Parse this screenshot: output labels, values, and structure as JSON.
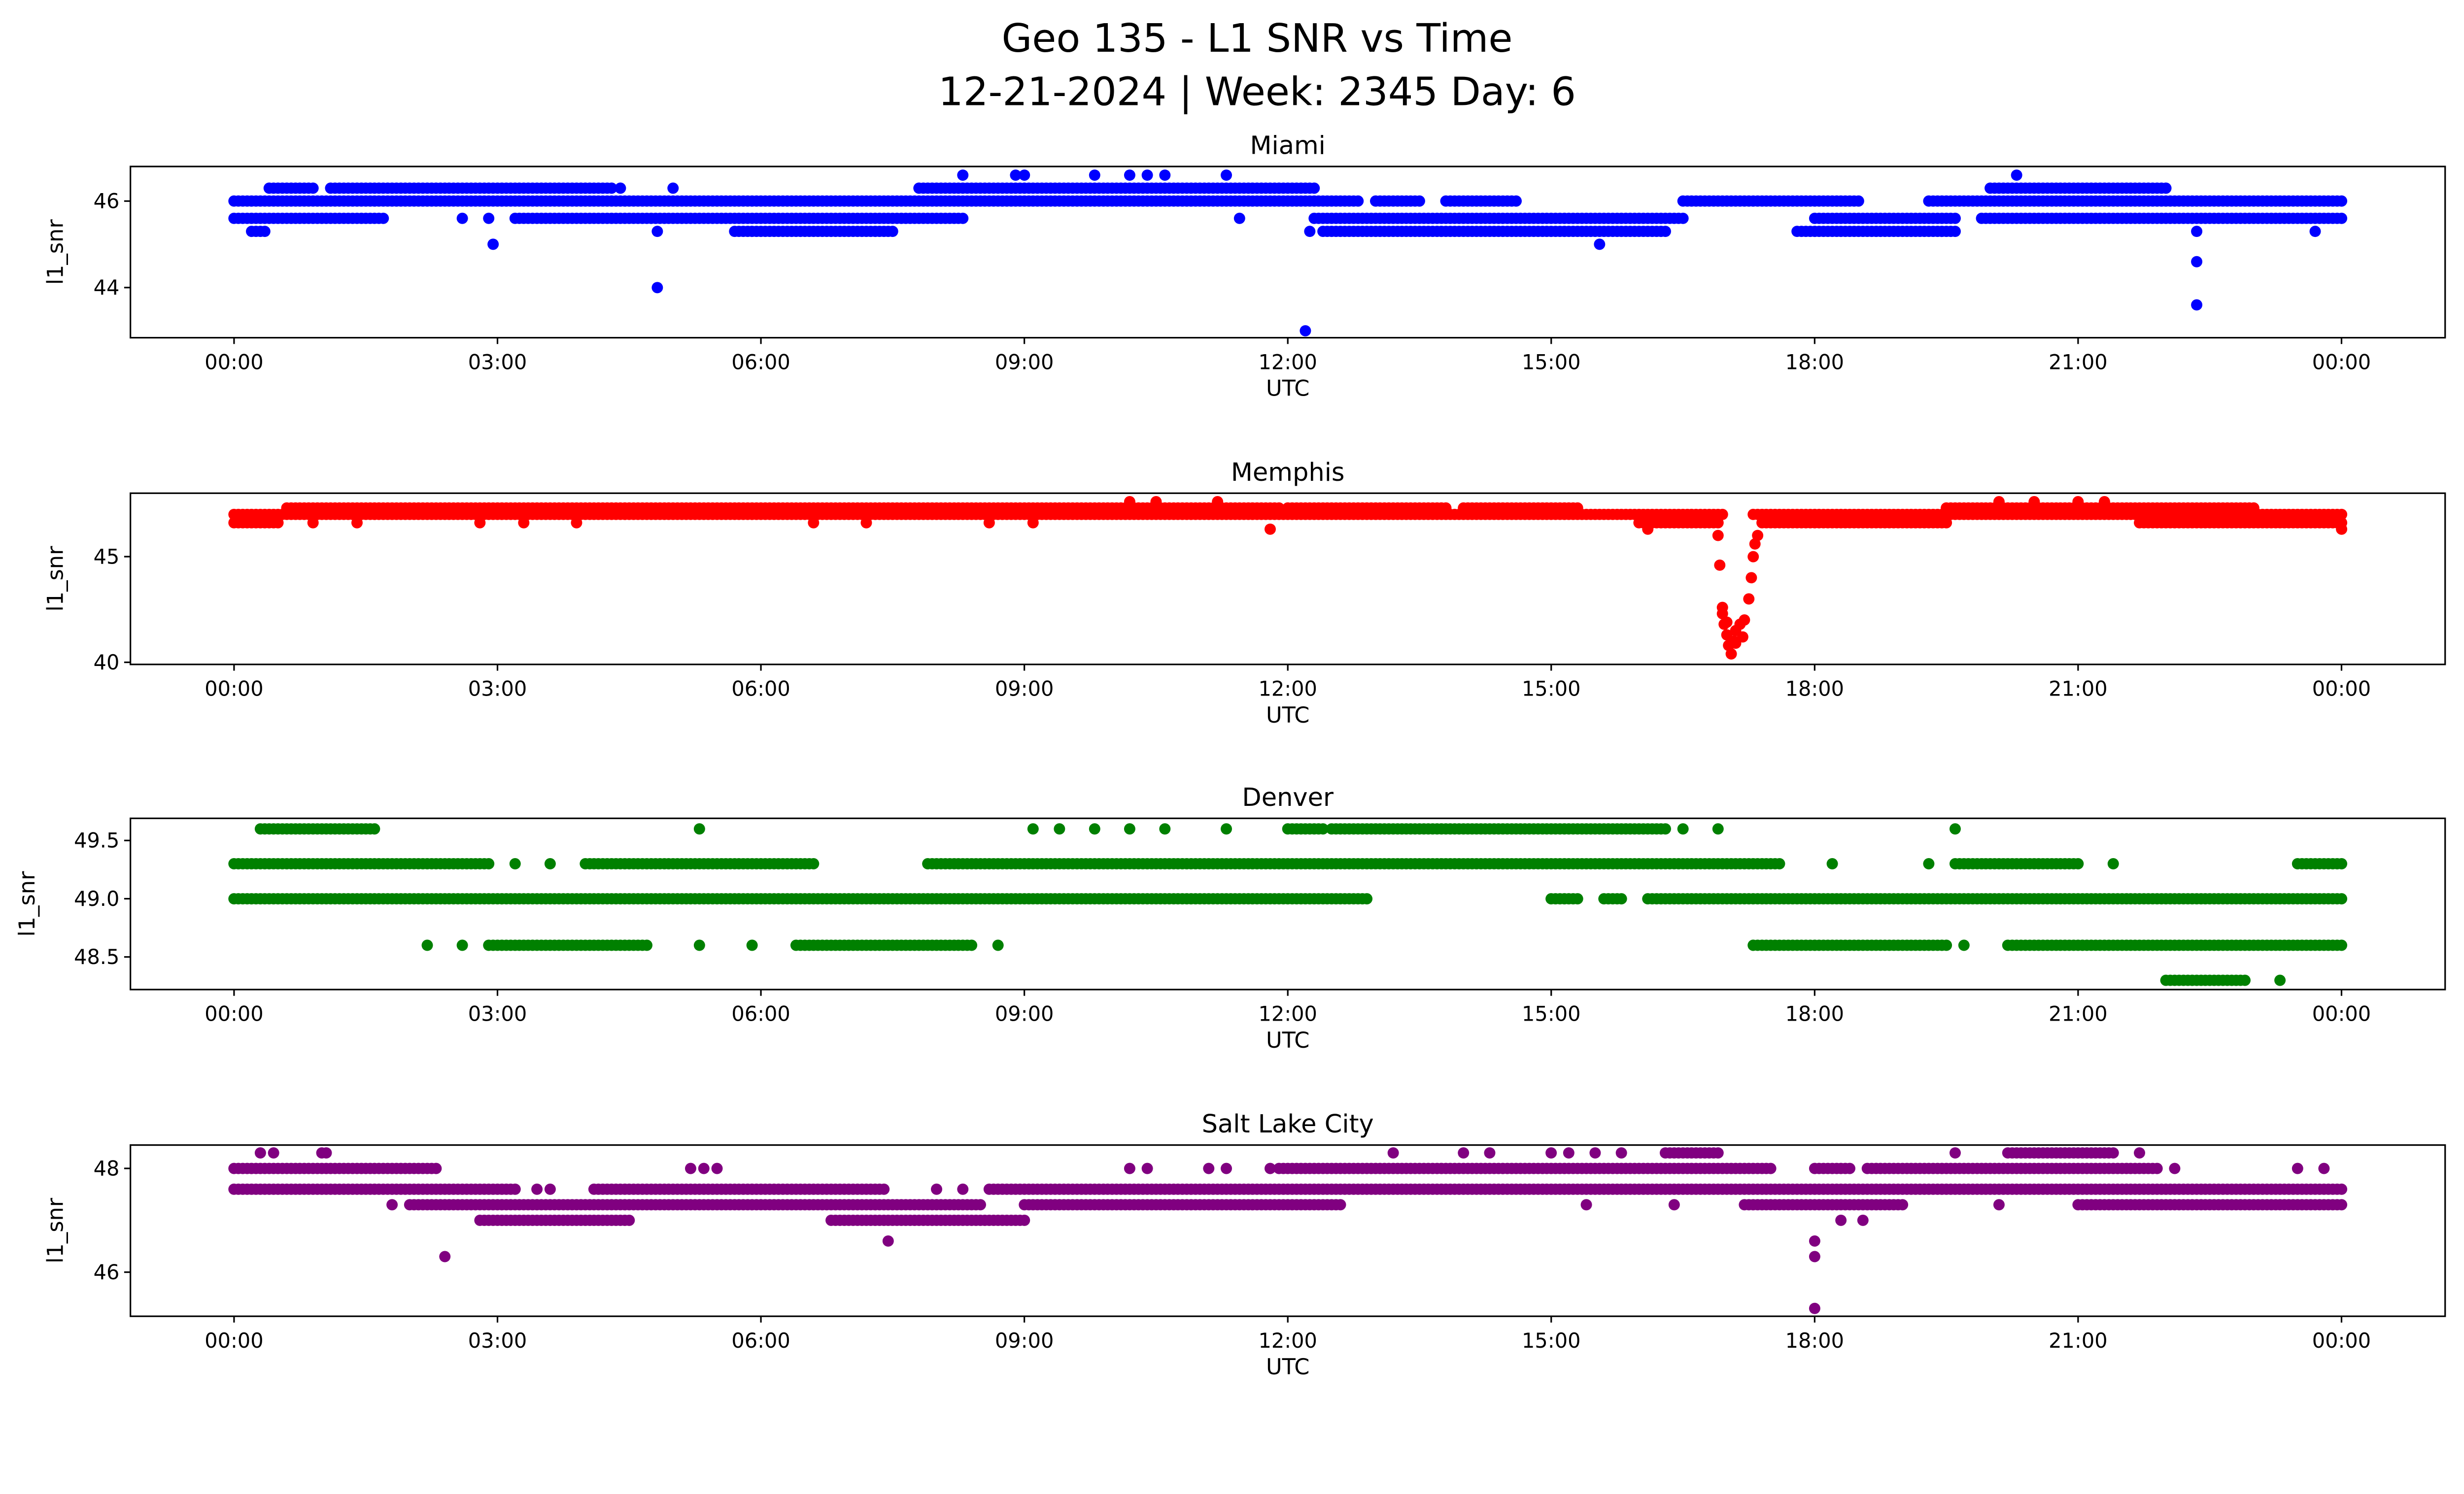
{
  "title": {
    "line1": "Geo 135 - L1 SNR vs Time",
    "line2": "12-21-2024 | Week: 2345 Day: 6"
  },
  "chart_data": [
    {
      "type": "scatter",
      "title": "Miami",
      "xlabel": "UTC",
      "ylabel": "l1_snr",
      "color": "#0000ff",
      "xlim": [
        -1.18,
        25.18
      ],
      "ylim": [
        42.84,
        46.8
      ],
      "yticks": [
        44,
        46
      ],
      "xticks": [
        {
          "h": 0,
          "label": "00:00"
        },
        {
          "h": 3,
          "label": "03:00"
        },
        {
          "h": 6,
          "label": "06:00"
        },
        {
          "h": 9,
          "label": "09:00"
        },
        {
          "h": 12,
          "label": "12:00"
        },
        {
          "h": 15,
          "label": "15:00"
        },
        {
          "h": 18,
          "label": "18:00"
        },
        {
          "h": 21,
          "label": "21:00"
        },
        {
          "h": 24,
          "label": "00:00"
        }
      ],
      "segments": [
        [
          46.0,
          0,
          12.8
        ],
        [
          46.0,
          13.0,
          13.5
        ],
        [
          46.0,
          13.8,
          14.6
        ],
        [
          46.0,
          16.5,
          18.5
        ],
        [
          46.0,
          19.3,
          24
        ],
        [
          46.3,
          0.4,
          0.9
        ],
        [
          46.3,
          1.1,
          4.3
        ],
        [
          46.3,
          7.8,
          12.3
        ],
        [
          46.3,
          20.0,
          22.0
        ],
        [
          45.6,
          0,
          1.7
        ],
        [
          45.6,
          3.2,
          8.3
        ],
        [
          45.6,
          12.3,
          16.5
        ],
        [
          45.6,
          18.0,
          19.6
        ],
        [
          45.6,
          19.9,
          24
        ],
        [
          45.3,
          0.2,
          0.35
        ],
        [
          45.3,
          5.7,
          7.5
        ],
        [
          45.3,
          12.4,
          16.3
        ],
        [
          45.3,
          17.8,
          19.6
        ]
      ],
      "points": [
        [
          2.6,
          45.6
        ],
        [
          2.9,
          45.6
        ],
        [
          2.95,
          45.0
        ],
        [
          4.82,
          44.0
        ],
        [
          4.82,
          45.3
        ],
        [
          5.0,
          46.3
        ],
        [
          4.4,
          46.3
        ],
        [
          8.3,
          46.6
        ],
        [
          8.9,
          46.6
        ],
        [
          9.0,
          46.6
        ],
        [
          9.8,
          46.6
        ],
        [
          10.2,
          46.6
        ],
        [
          10.4,
          46.6
        ],
        [
          10.6,
          46.6
        ],
        [
          11.3,
          46.6
        ],
        [
          11.45,
          45.6
        ],
        [
          12.2,
          43.0
        ],
        [
          12.25,
          45.3
        ],
        [
          15.55,
          45.0
        ],
        [
          20.3,
          46.6
        ],
        [
          22.35,
          45.3
        ],
        [
          22.35,
          44.6
        ],
        [
          22.35,
          43.6
        ],
        [
          23.7,
          45.3
        ]
      ]
    },
    {
      "type": "scatter",
      "title": "Memphis",
      "xlabel": "UTC",
      "ylabel": "l1_snr",
      "color": "#ff0000",
      "xlim": [
        -1.18,
        25.18
      ],
      "ylim": [
        39.9,
        48.0
      ],
      "yticks": [
        40,
        45
      ],
      "xticks": [
        {
          "h": 0,
          "label": "00:00"
        },
        {
          "h": 3,
          "label": "03:00"
        },
        {
          "h": 6,
          "label": "06:00"
        },
        {
          "h": 9,
          "label": "09:00"
        },
        {
          "h": 12,
          "label": "12:00"
        },
        {
          "h": 15,
          "label": "15:00"
        },
        {
          "h": 18,
          "label": "18:00"
        },
        {
          "h": 21,
          "label": "21:00"
        },
        {
          "h": 24,
          "label": "00:00"
        }
      ],
      "segments": [
        [
          47.0,
          0,
          16.95
        ],
        [
          47.0,
          17.3,
          24
        ],
        [
          46.6,
          0,
          0.5
        ],
        [
          46.6,
          16.0,
          16.9
        ],
        [
          46.6,
          17.4,
          19.5
        ],
        [
          46.6,
          21.7,
          24
        ],
        [
          47.3,
          0.6,
          11.9
        ],
        [
          47.3,
          12.0,
          13.8
        ],
        [
          47.3,
          14.0,
          15.3
        ],
        [
          47.3,
          19.5,
          23.0
        ]
      ],
      "points": [
        [
          0.9,
          46.6
        ],
        [
          1.4,
          46.6
        ],
        [
          2.8,
          46.6
        ],
        [
          3.3,
          46.6
        ],
        [
          3.9,
          46.6
        ],
        [
          6.6,
          46.6
        ],
        [
          7.2,
          46.6
        ],
        [
          8.6,
          46.6
        ],
        [
          9.1,
          46.6
        ],
        [
          10.2,
          47.6
        ],
        [
          10.5,
          47.6
        ],
        [
          11.2,
          47.6
        ],
        [
          11.8,
          46.3
        ],
        [
          16.1,
          46.3
        ],
        [
          20.1,
          47.6
        ],
        [
          20.5,
          47.6
        ],
        [
          21.0,
          47.6
        ],
        [
          21.3,
          47.6
        ],
        [
          24,
          46.3
        ],
        [
          16.9,
          46.0
        ],
        [
          16.92,
          44.6
        ],
        [
          16.95,
          42.3
        ],
        [
          16.97,
          41.8
        ],
        [
          17.0,
          41.3
        ],
        [
          17.02,
          40.8
        ],
        [
          17.05,
          40.4
        ],
        [
          17.08,
          41.0
        ],
        [
          17.1,
          41.5
        ],
        [
          17.15,
          41.8
        ],
        [
          17.2,
          42.0
        ],
        [
          17.25,
          43.0
        ],
        [
          17.28,
          44.0
        ],
        [
          17.3,
          45.0
        ],
        [
          17.32,
          45.6
        ],
        [
          17.35,
          46.0
        ],
        [
          16.95,
          42.6
        ],
        [
          17.0,
          41.9
        ],
        [
          17.1,
          40.9
        ],
        [
          17.18,
          41.2
        ]
      ]
    },
    {
      "type": "scatter",
      "title": "Denver",
      "xlabel": "UTC",
      "ylabel": "l1_snr",
      "color": "#008000",
      "xlim": [
        -1.18,
        25.18
      ],
      "ylim": [
        48.22,
        49.69
      ],
      "yticks": [
        48.5,
        49.0,
        49.5
      ],
      "xticks": [
        {
          "h": 0,
          "label": "00:00"
        },
        {
          "h": 3,
          "label": "03:00"
        },
        {
          "h": 6,
          "label": "06:00"
        },
        {
          "h": 9,
          "label": "09:00"
        },
        {
          "h": 12,
          "label": "12:00"
        },
        {
          "h": 15,
          "label": "15:00"
        },
        {
          "h": 18,
          "label": "18:00"
        },
        {
          "h": 21,
          "label": "21:00"
        },
        {
          "h": 24,
          "label": "00:00"
        }
      ],
      "segments": [
        [
          49.6,
          0.3,
          1.6
        ],
        [
          49.6,
          12.0,
          12.4
        ],
        [
          49.6,
          12.5,
          16.3
        ],
        [
          49.3,
          0,
          2.9
        ],
        [
          49.3,
          4.0,
          6.6
        ],
        [
          49.3,
          7.9,
          17.6
        ],
        [
          49.3,
          19.6,
          21.0
        ],
        [
          49.3,
          23.5,
          24
        ],
        [
          49.0,
          0,
          12.9
        ],
        [
          49.0,
          15.0,
          15.3
        ],
        [
          49.0,
          15.6,
          15.8
        ],
        [
          49.0,
          16.1,
          24
        ],
        [
          48.6,
          2.9,
          4.7
        ],
        [
          48.6,
          6.4,
          8.4
        ],
        [
          48.6,
          17.3,
          19.5
        ],
        [
          48.6,
          20.2,
          24
        ],
        [
          48.3,
          22.0,
          22.9
        ]
      ],
      "points": [
        [
          5.3,
          49.6
        ],
        [
          9.1,
          49.6
        ],
        [
          9.4,
          49.6
        ],
        [
          9.8,
          49.6
        ],
        [
          10.2,
          49.6
        ],
        [
          10.6,
          49.6
        ],
        [
          11.3,
          49.6
        ],
        [
          16.5,
          49.6
        ],
        [
          16.9,
          49.6
        ],
        [
          19.6,
          49.6
        ],
        [
          3.2,
          49.3
        ],
        [
          3.6,
          49.3
        ],
        [
          18.2,
          49.3
        ],
        [
          19.3,
          49.3
        ],
        [
          21.4,
          49.3
        ],
        [
          2.2,
          48.6
        ],
        [
          2.6,
          48.6
        ],
        [
          5.3,
          48.6
        ],
        [
          5.9,
          48.6
        ],
        [
          8.7,
          48.6
        ],
        [
          19.7,
          48.6
        ],
        [
          23.3,
          48.3
        ]
      ]
    },
    {
      "type": "scatter",
      "title": "Salt Lake City",
      "xlabel": "UTC",
      "ylabel": "l1_snr",
      "color": "#800080",
      "xlim": [
        -1.18,
        25.18
      ],
      "ylim": [
        45.15,
        48.45
      ],
      "yticks": [
        46,
        48
      ],
      "xticks": [
        {
          "h": 0,
          "label": "00:00"
        },
        {
          "h": 3,
          "label": "03:00"
        },
        {
          "h": 6,
          "label": "06:00"
        },
        {
          "h": 9,
          "label": "09:00"
        },
        {
          "h": 12,
          "label": "12:00"
        },
        {
          "h": 15,
          "label": "15:00"
        },
        {
          "h": 18,
          "label": "18:00"
        },
        {
          "h": 21,
          "label": "21:00"
        },
        {
          "h": 24,
          "label": "00:00"
        }
      ],
      "segments": [
        [
          48.0,
          0,
          2.3
        ],
        [
          48.0,
          11.9,
          17.5
        ],
        [
          48.0,
          18.0,
          18.4
        ],
        [
          48.0,
          18.6,
          21.9
        ],
        [
          47.6,
          0,
          3.2
        ],
        [
          47.6,
          4.1,
          7.4
        ],
        [
          47.6,
          8.6,
          24
        ],
        [
          47.3,
          2.0,
          8.5
        ],
        [
          47.3,
          9.0,
          12.6
        ],
        [
          47.3,
          17.2,
          19.0
        ],
        [
          47.3,
          21.0,
          24
        ],
        [
          47.0,
          2.8,
          4.5
        ],
        [
          47.0,
          6.8,
          9.0
        ],
        [
          48.3,
          16.3,
          16.9
        ],
        [
          48.3,
          20.2,
          21.4
        ]
      ],
      "points": [
        [
          0.3,
          48.3
        ],
        [
          0.45,
          48.3
        ],
        [
          1.0,
          48.3
        ],
        [
          1.05,
          48.3
        ],
        [
          13.2,
          48.3
        ],
        [
          14.0,
          48.3
        ],
        [
          14.3,
          48.3
        ],
        [
          15.0,
          48.3
        ],
        [
          15.2,
          48.3
        ],
        [
          15.5,
          48.3
        ],
        [
          15.8,
          48.3
        ],
        [
          19.6,
          48.3
        ],
        [
          21.7,
          48.3
        ],
        [
          5.2,
          48.0
        ],
        [
          5.35,
          48.0
        ],
        [
          5.5,
          48.0
        ],
        [
          10.2,
          48.0
        ],
        [
          10.4,
          48.0
        ],
        [
          11.1,
          48.0
        ],
        [
          11.3,
          48.0
        ],
        [
          11.8,
          48.0
        ],
        [
          22.1,
          48.0
        ],
        [
          23.5,
          48.0
        ],
        [
          23.8,
          48.0
        ],
        [
          3.45,
          47.6
        ],
        [
          3.6,
          47.6
        ],
        [
          8.0,
          47.6
        ],
        [
          8.3,
          47.6
        ],
        [
          1.8,
          47.3
        ],
        [
          15.4,
          47.3
        ],
        [
          16.4,
          47.3
        ],
        [
          20.1,
          47.3
        ],
        [
          2.4,
          46.3
        ],
        [
          7.45,
          46.6
        ],
        [
          18.0,
          46.6
        ],
        [
          18.0,
          46.3
        ],
        [
          18.0,
          45.3
        ],
        [
          18.3,
          47.0
        ],
        [
          18.55,
          47.0
        ]
      ]
    }
  ]
}
